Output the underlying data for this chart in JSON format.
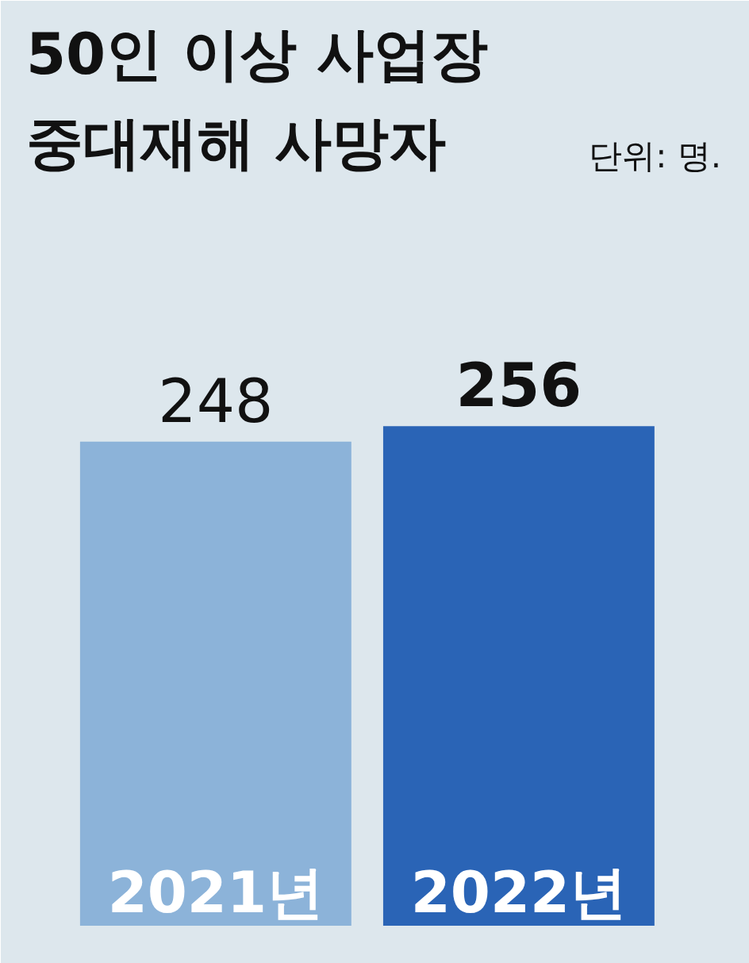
{
  "chart_data": {
    "type": "bar",
    "title": "50인 이상 사업장\n중대재해 사망자",
    "subtitle": "단위: 명.",
    "categories": [
      "2021년",
      "2022년"
    ],
    "values": [
      248,
      256
    ],
    "colors": [
      "#8cb3d9",
      "#2a64b6"
    ],
    "data_labels": true
  }
}
